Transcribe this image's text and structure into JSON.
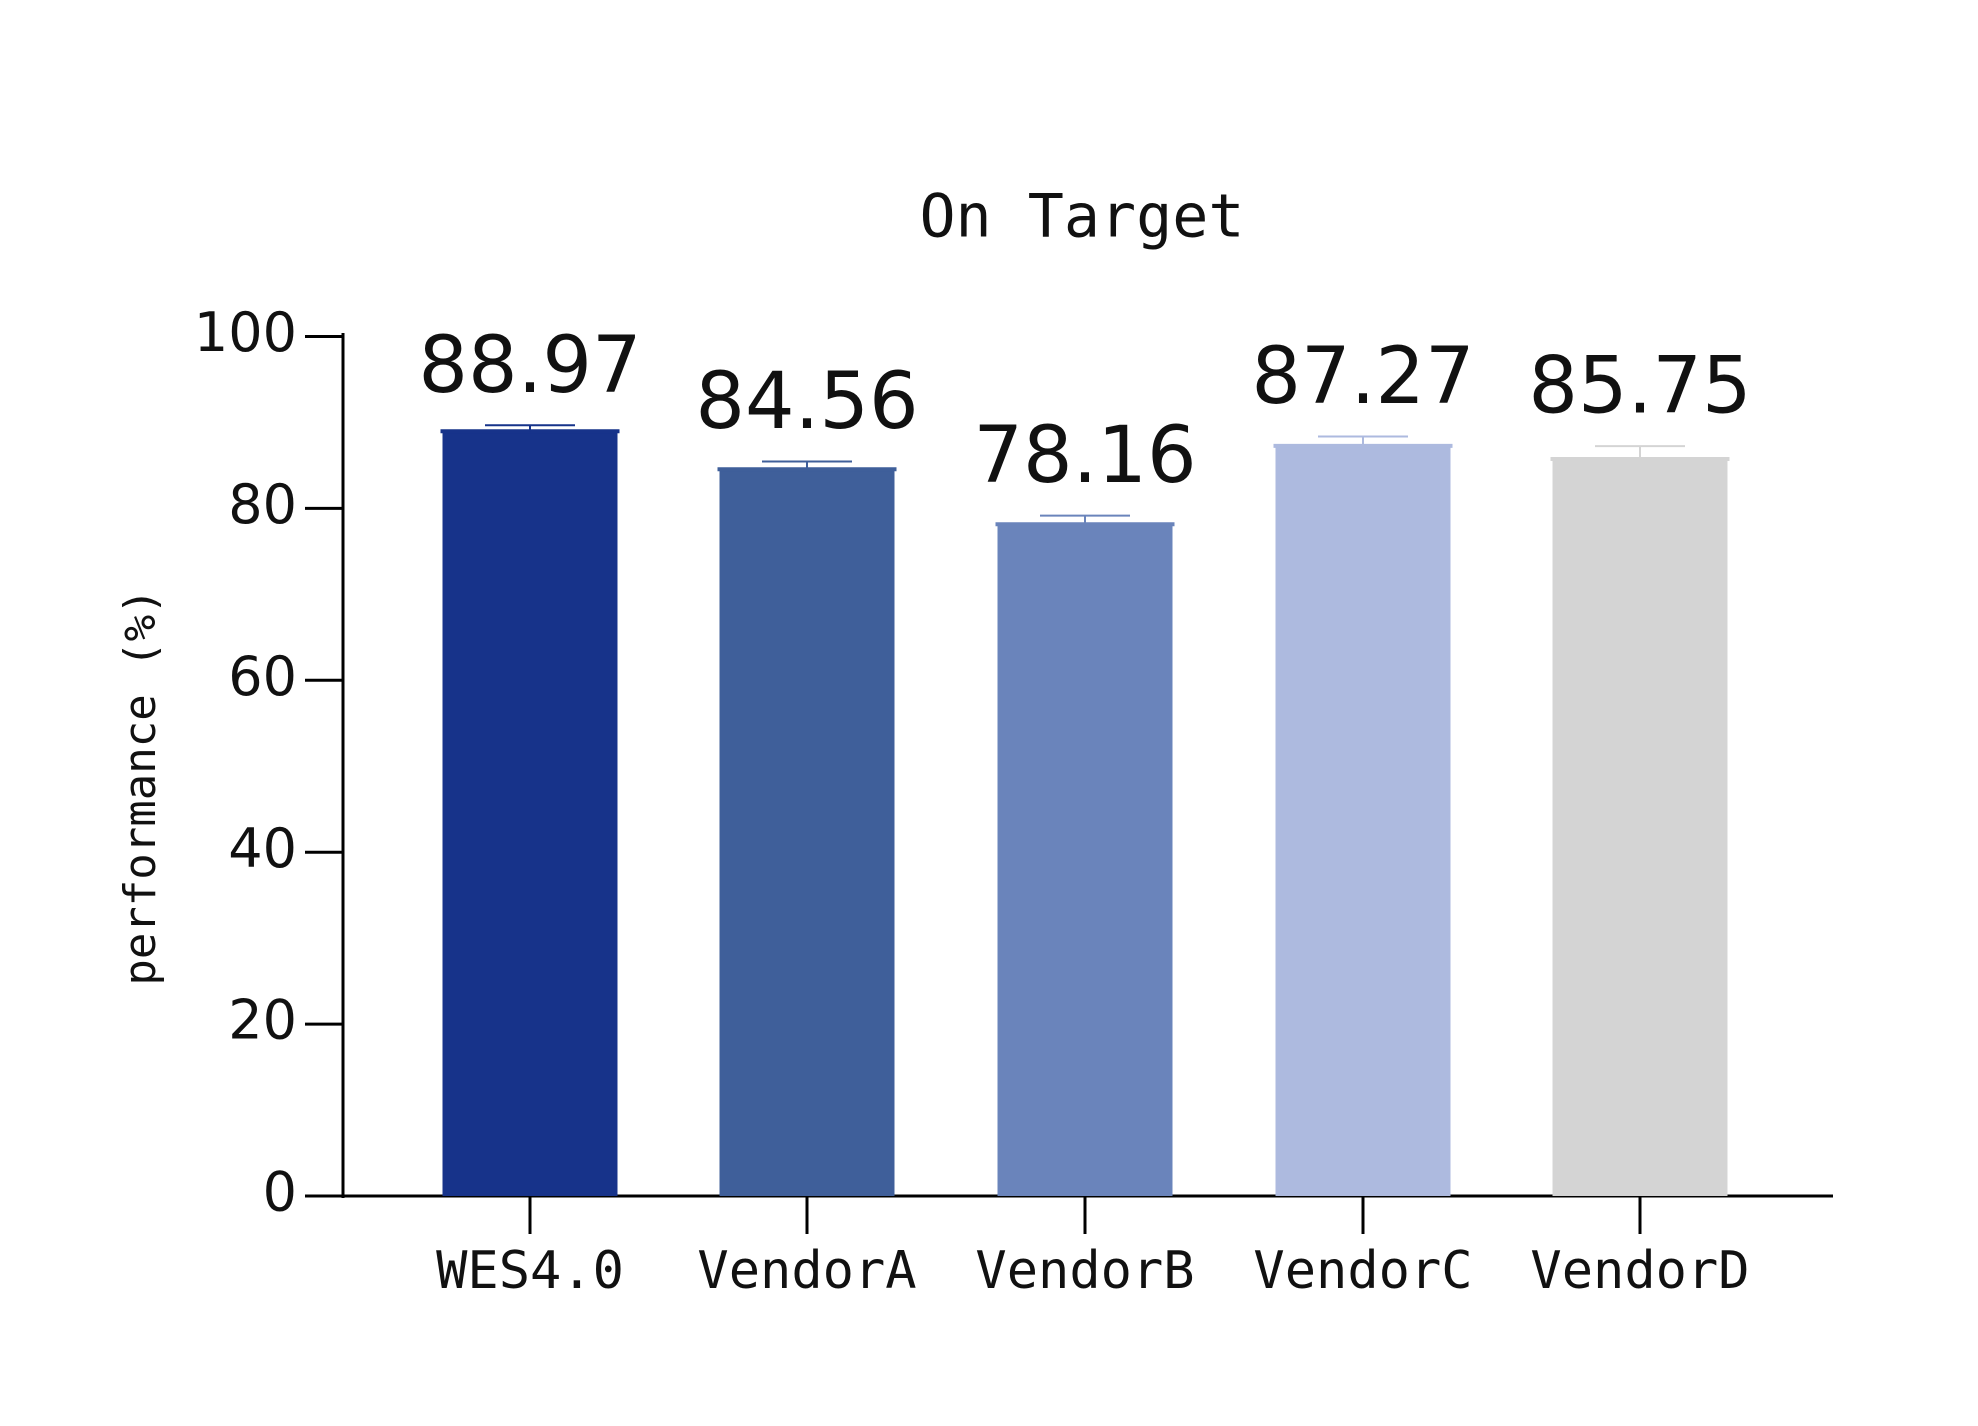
{
  "chart_data": {
    "type": "bar",
    "title": "On Target",
    "y_label": "performance (%)",
    "categories": [
      "WES4.0",
      "VendorA",
      "VendorB",
      "VendorC",
      "VendorD"
    ],
    "values": [
      88.97,
      84.56,
      78.16,
      87.27,
      85.75
    ],
    "errors": [
      0.7,
      0.9,
      1.0,
      1.1,
      1.5
    ],
    "colors": [
      "#17338a",
      "#3f5f9a",
      "#6a84bb",
      "#adbadf",
      "#d4d4d4"
    ],
    "ylim": [
      0,
      100
    ],
    "yticks": [
      0,
      20,
      40,
      60,
      80,
      100
    ],
    "grid": false
  }
}
